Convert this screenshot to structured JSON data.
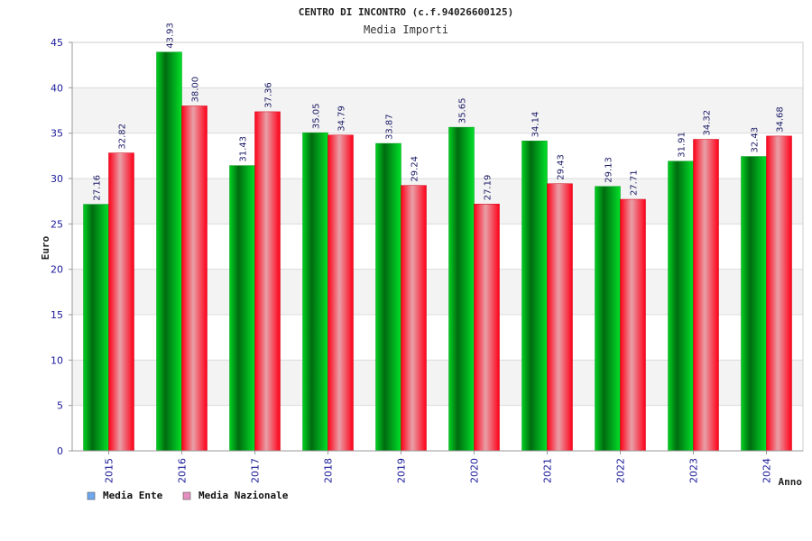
{
  "chart_data": {
    "type": "bar",
    "title": "CENTRO DI INCONTRO (c.f.94026600125)",
    "subtitle": "Media Importi",
    "xlabel": "Anno",
    "ylabel": "Euro",
    "categories": [
      "2015",
      "2016",
      "2017",
      "2018",
      "2019",
      "2020",
      "2021",
      "2022",
      "2023",
      "2024"
    ],
    "series": [
      {
        "name": "Media Ente",
        "values": [
          27.16,
          43.93,
          31.43,
          35.05,
          33.87,
          35.65,
          34.14,
          29.13,
          31.91,
          32.43
        ]
      },
      {
        "name": "Media Nazionale",
        "values": [
          32.82,
          38.0,
          37.36,
          34.79,
          29.24,
          27.19,
          29.43,
          27.71,
          34.32,
          34.68
        ]
      }
    ],
    "value_labels": [
      [
        "27.16",
        "43.93",
        "31.43",
        "35.05",
        "33.87",
        "35.65",
        "34.14",
        "29.13",
        "31.91",
        "32.43"
      ],
      [
        "32.82",
        "38.00",
        "37.36",
        "34.79",
        "29.24",
        "27.19",
        "29.43",
        "27.71",
        "34.32",
        "34.68"
      ]
    ],
    "yticks": [
      "0",
      "5",
      "10",
      "15",
      "20",
      "25",
      "30",
      "35",
      "40",
      "45"
    ],
    "ylim": [
      0,
      45
    ],
    "grid": true,
    "legend_position": "bottom-left",
    "legend_swatch_colors": [
      "#6fa8ef",
      "#e58ec0"
    ],
    "colors": {
      "series1": "#00c020",
      "series2": "#ff1020"
    }
  }
}
